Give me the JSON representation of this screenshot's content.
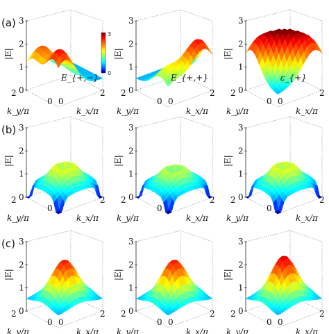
{
  "figure": {
    "rows": [
      {
        "label": "(a)",
        "panels": [
          {
            "name": "panel-a1",
            "annotation": "E_{+,−}",
            "peaks": [
              [
                0.15,
                0.15,
                2.6
              ],
              [
                0.2,
                0.8,
                2.2
              ]
            ]
          },
          {
            "name": "panel-a2",
            "annotation": "E_{+,+}",
            "peaks": [
              [
                0.8,
                0.15,
                2.6
              ],
              [
                0.2,
                0.25,
                1.6
              ]
            ]
          },
          {
            "name": "panel-a3",
            "annotation": "ε_{+}",
            "peaks": [
              [
                0.5,
                0.5,
                2.8
              ],
              [
                0.15,
                0.85,
                2.4
              ],
              [
                0.85,
                0.15,
                2.4
              ]
            ]
          }
        ]
      },
      {
        "label": "(b)",
        "panels": [
          {
            "name": "panel-b1",
            "annotation": "",
            "peaks": [
              [
                0.5,
                0.5,
                2.0
              ]
            ]
          },
          {
            "name": "panel-b2",
            "annotation": "",
            "peaks": [
              [
                0.5,
                0.5,
                1.8
              ]
            ]
          },
          {
            "name": "panel-b3",
            "annotation": "",
            "peaks": [
              [
                0.5,
                0.5,
                2.0
              ]
            ]
          }
        ]
      },
      {
        "label": "(c)",
        "panels": [
          {
            "name": "panel-c1",
            "annotation": "",
            "peaks": [
              [
                0.5,
                0.5,
                2.6
              ]
            ]
          },
          {
            "name": "panel-c2",
            "annotation": "",
            "peaks": [
              [
                0.5,
                0.5,
                2.6
              ]
            ]
          },
          {
            "name": "panel-c3",
            "annotation": "",
            "peaks": [
              [
                0.5,
                0.5,
                2.8
              ]
            ]
          }
        ]
      }
    ],
    "axes": {
      "zlabel": "|E|",
      "xlabel": "k_x/π",
      "ylabel": "k_y/π",
      "zticks": [
        "0",
        "1",
        "2",
        "3"
      ],
      "xticks": [
        "0",
        "2"
      ],
      "yticks": [
        "2",
        "0"
      ]
    },
    "colorbar": {
      "ticks": [
        "3",
        "0"
      ],
      "colors": [
        "#7f0000",
        "#ff0000",
        "#ff8000",
        "#ffff00",
        "#80ff80",
        "#00ffff",
        "#0080ff",
        "#0000ff",
        "#00008f"
      ]
    }
  }
}
